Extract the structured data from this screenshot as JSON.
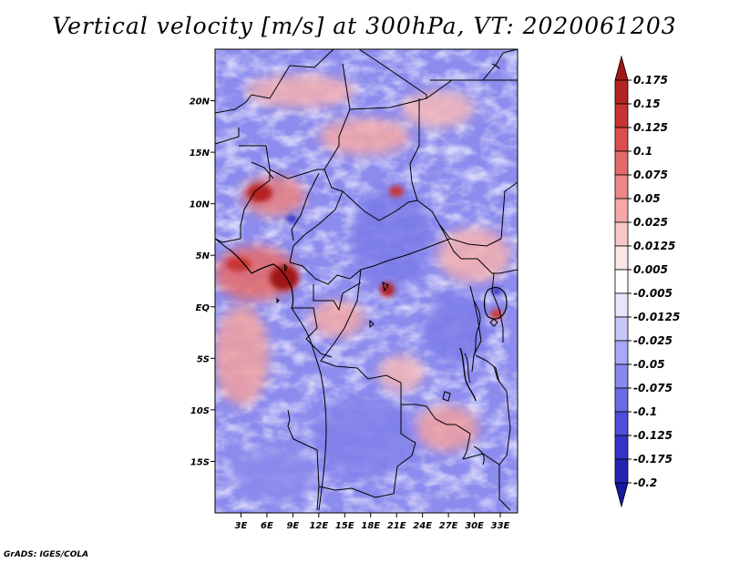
{
  "title": "Vertical velocity [m/s] at 300hPa, VT: 2020061203",
  "credit": "GrADS: IGES/COLA",
  "map": {
    "lat_range": [
      -20,
      25
    ],
    "lon_range": [
      0,
      35
    ],
    "lat_ticks": [
      {
        "value": 20,
        "label": "20N"
      },
      {
        "value": 15,
        "label": "15N"
      },
      {
        "value": 10,
        "label": "10N"
      },
      {
        "value": 5,
        "label": "5N"
      },
      {
        "value": 0,
        "label": "EQ"
      },
      {
        "value": -5,
        "label": "5S"
      },
      {
        "value": -10,
        "label": "10S"
      },
      {
        "value": -15,
        "label": "15S"
      }
    ],
    "lon_ticks": [
      {
        "value": 3,
        "label": "3E"
      },
      {
        "value": 6,
        "label": "6E"
      },
      {
        "value": 9,
        "label": "9E"
      },
      {
        "value": 12,
        "label": "12E"
      },
      {
        "value": 15,
        "label": "15E"
      },
      {
        "value": 18,
        "label": "18E"
      },
      {
        "value": 21,
        "label": "21E"
      },
      {
        "value": 24,
        "label": "24E"
      },
      {
        "value": 27,
        "label": "27E"
      },
      {
        "value": 30,
        "label": "30E"
      },
      {
        "value": 33,
        "label": "33E"
      }
    ]
  },
  "colorbar": {
    "levels": [
      "0.175",
      "0.15",
      "0.125",
      "0.1",
      "0.075",
      "0.05",
      "0.025",
      "0.0125",
      "0.005",
      "-0.005",
      "-0.0125",
      "-0.025",
      "-0.05",
      "-0.075",
      "-0.1",
      "-0.125",
      "-0.175",
      "-0.2"
    ],
    "colors": [
      "#a01818",
      "#b42424",
      "#c83434",
      "#dc4e4e",
      "#e46a6a",
      "#ec8888",
      "#f4a8a8",
      "#f8c8c8",
      "#fce6e6",
      "#ffffff",
      "#e6e6fc",
      "#c8c8f8",
      "#a8a8f4",
      "#8888ec",
      "#6a6ae4",
      "#4e4edc",
      "#3434c8",
      "#2424b4",
      "#1818a0"
    ]
  }
}
